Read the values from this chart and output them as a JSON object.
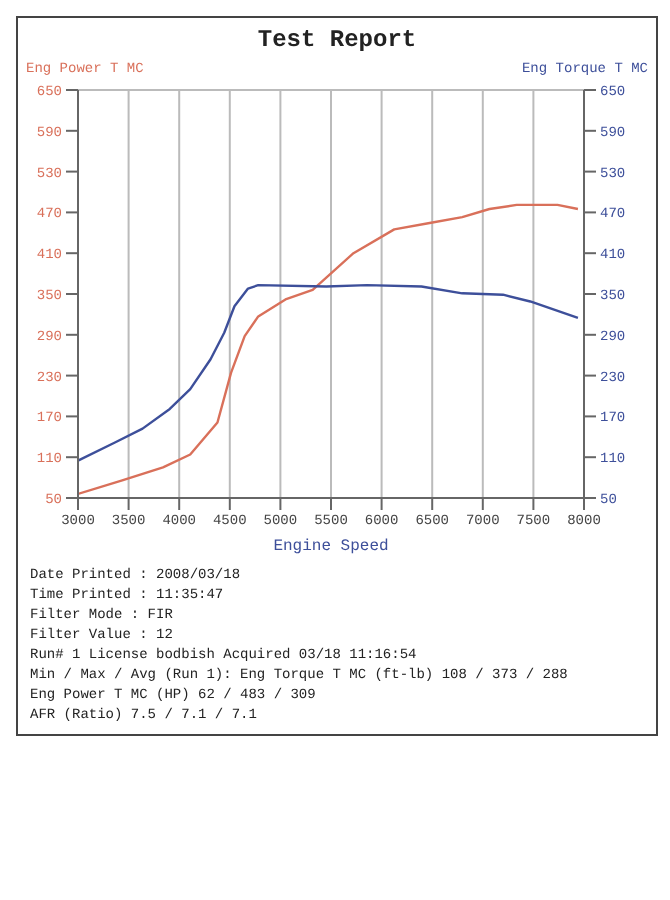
{
  "chart_data": {
    "type": "line",
    "title": "Test Report",
    "xlabel": "Engine Speed",
    "ylabel": "Eng Power T MC",
    "y2label": "Eng Torque T MC",
    "annotations": [
      "Date Printed : 2008/03/18",
      "Time Printed : 11:35:47",
      "Filter Mode : FIR",
      "Filter Value : 12",
      "Run# 1 License bodbish Acquired 03/18 11:16:54",
      "Min / Max / Avg (Run 1): Eng Torque T MC (ft-lb) 108 / 373 / 288",
      "Eng Power T MC (HP) 62 / 483 / 309",
      "AFR (Ratio) 7.5 / 7.1 / 7.1"
    ],
    "xlim": [
      3000,
      8000
    ],
    "xticks": [
      3000,
      3500,
      4000,
      4500,
      5000,
      5500,
      6000,
      6500,
      7000,
      7500,
      8000
    ],
    "ylim": [
      50,
      650
    ],
    "yticks": [
      50,
      110,
      170,
      230,
      290,
      350,
      410,
      470,
      530,
      590,
      650
    ],
    "y2lim": [
      50,
      650
    ],
    "y2ticks": [
      50,
      110,
      170,
      230,
      290,
      350,
      410,
      470,
      530,
      590,
      650
    ],
    "grid": true,
    "marker": "none",
    "line_style": "solid",
    "series": [
      {
        "color": "#d9705a",
        "x": [
          3000,
          3437,
          3840,
          4109,
          4378,
          4512,
          4647,
          4781,
          5050,
          5319,
          5722,
          6125,
          6461,
          6797,
          7066,
          7335,
          7738,
          7940
        ],
        "values": [
          56,
          76,
          95,
          114,
          161,
          234,
          288,
          317,
          342,
          356,
          410,
          445,
          454,
          463,
          475,
          481,
          481,
          475
        ]
      },
      {
        "color": "#3d4f9a",
        "axis": "y2",
        "x": [
          3000,
          3370,
          3638,
          3907,
          4109,
          4310,
          4445,
          4546,
          4680,
          4781,
          5453,
          5856,
          6394,
          6797,
          7200,
          7469,
          7940
        ],
        "values": [
          105,
          132,
          152,
          181,
          210,
          254,
          293,
          332,
          358,
          363,
          361,
          363,
          361,
          351,
          349,
          339,
          315
        ]
      }
    ]
  }
}
